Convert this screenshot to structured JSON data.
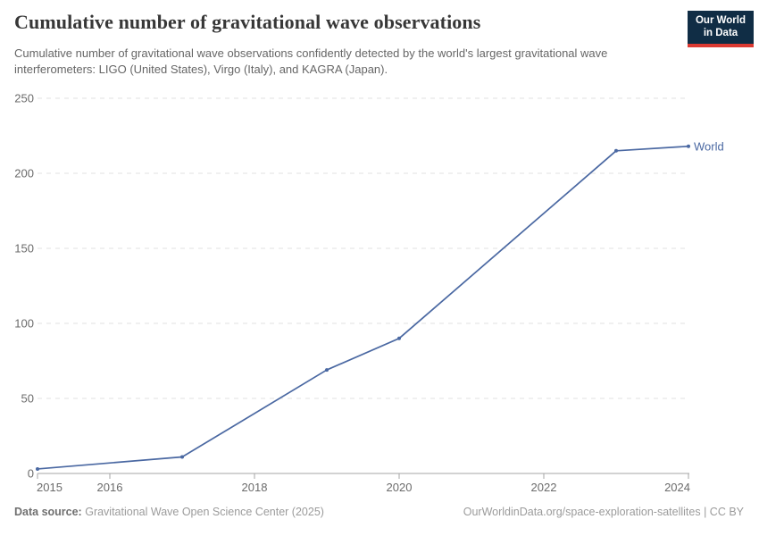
{
  "header": {
    "title": "Cumulative number of gravitational wave observations",
    "subtitle": "Cumulative number of gravitational wave observations confidently detected by the world's largest gravitational wave interferometers: LIGO (United States), Virgo (Italy), and KAGRA (Japan)."
  },
  "logo": {
    "line1": "Our World",
    "line2": "in Data",
    "bg_color": "#102D45",
    "accent_color": "#DC3A32",
    "text_color": "#ffffff"
  },
  "chart_data": {
    "type": "line",
    "title": "Cumulative number of gravitational wave observations",
    "xlabel": "",
    "ylabel": "",
    "xlim": [
      2015,
      2024
    ],
    "ylim": [
      0,
      250
    ],
    "x_ticks": [
      2015,
      2016,
      2018,
      2020,
      2022,
      2024
    ],
    "y_ticks": [
      0,
      50,
      100,
      150,
      200,
      250
    ],
    "grid": "horizontal-dashed",
    "legend_position": "end-of-line-label",
    "series": [
      {
        "name": "World",
        "color": "#4A68A2",
        "x": [
          2015,
          2017,
          2019,
          2020,
          2023,
          2024
        ],
        "y": [
          3,
          11,
          69,
          90,
          215,
          218
        ]
      }
    ],
    "axis_colors": {
      "axis_line": "#a6a6a6",
      "gridline": "#e2e2e2",
      "tick_label": "#6b6b6b"
    }
  },
  "footer": {
    "source_label": "Data source:",
    "source_value": "Gravitational Wave Open Science Center (2025)",
    "attribution": "OurWorldinData.org/space-exploration-satellites | CC BY"
  }
}
